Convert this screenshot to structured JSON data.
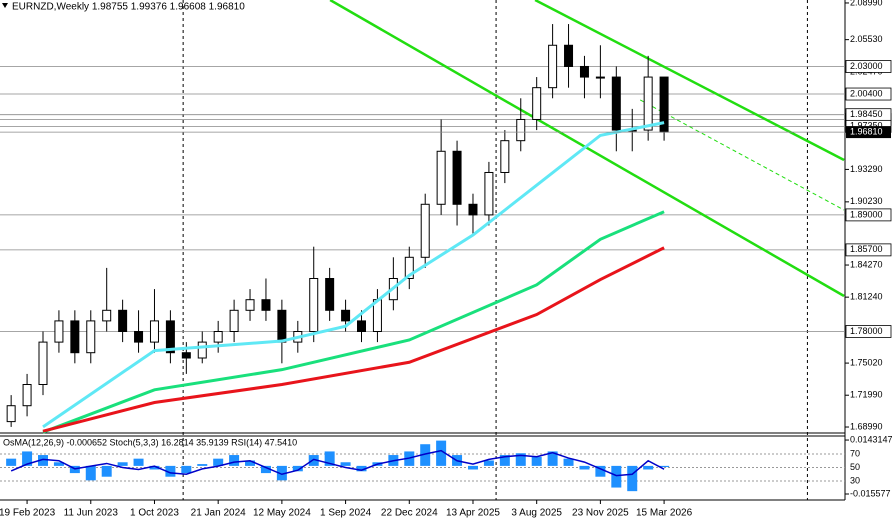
{
  "chart_data": [
    {
      "type": "candlestick",
      "title": "EURNZD,Weekly  1.98755 1.99376 1.96608 1.96810",
      "x": [
        -1,
        0,
        1,
        2,
        3,
        4,
        5,
        6,
        7,
        8,
        9,
        10,
        11,
        12,
        13,
        14,
        15,
        16,
        17,
        18,
        19,
        20,
        21,
        22,
        23,
        24,
        25,
        26,
        27,
        28,
        29,
        30,
        31,
        32,
        33,
        34,
        35,
        36,
        37,
        38,
        39,
        40
      ],
      "open": [
        1.695,
        1.71,
        1.73,
        1.77,
        1.79,
        1.76,
        1.79,
        1.8,
        1.78,
        1.77,
        1.79,
        1.76,
        1.755,
        1.77,
        1.78,
        1.8,
        1.81,
        1.8,
        1.77,
        1.78,
        1.83,
        1.8,
        1.79,
        1.78,
        1.81,
        1.83,
        1.85,
        1.9,
        1.95,
        1.9,
        1.89,
        1.93,
        1.96,
        1.98,
        2.01,
        2.05,
        2.03,
        2.02,
        2.02,
        1.97,
        1.97,
        2.02
      ],
      "high": [
        1.72,
        1.74,
        1.78,
        1.8,
        1.8,
        1.8,
        1.84,
        1.81,
        1.8,
        1.82,
        1.8,
        1.77,
        1.78,
        1.79,
        1.81,
        1.82,
        1.83,
        1.81,
        1.79,
        1.86,
        1.84,
        1.81,
        1.8,
        1.82,
        1.85,
        1.86,
        1.91,
        1.98,
        1.96,
        1.91,
        1.94,
        1.97,
        2.0,
        2.02,
        2.07,
        2.07,
        2.04,
        2.05,
        2.03,
        1.99,
        2.04,
        2.02
      ],
      "low": [
        1.69,
        1.7,
        1.72,
        1.76,
        1.75,
        1.75,
        1.78,
        1.77,
        1.76,
        1.76,
        1.75,
        1.74,
        1.75,
        1.76,
        1.77,
        1.79,
        1.79,
        1.75,
        1.76,
        1.77,
        1.79,
        1.78,
        1.77,
        1.77,
        1.8,
        1.82,
        1.84,
        1.89,
        1.88,
        1.87,
        1.88,
        1.92,
        1.95,
        1.97,
        2.0,
        2.01,
        2.0,
        2.0,
        1.95,
        1.95,
        1.96,
        1.96
      ],
      "close": [
        1.71,
        1.73,
        1.77,
        1.79,
        1.76,
        1.79,
        1.8,
        1.78,
        1.77,
        1.79,
        1.76,
        1.755,
        1.77,
        1.78,
        1.8,
        1.81,
        1.8,
        1.77,
        1.78,
        1.83,
        1.8,
        1.79,
        1.78,
        1.81,
        1.83,
        1.85,
        1.9,
        1.95,
        1.9,
        1.89,
        1.93,
        1.96,
        1.98,
        2.01,
        2.05,
        2.03,
        2.02,
        2.02,
        1.97,
        1.97,
        2.02,
        1.9681
      ],
      "color": "#000000",
      "series": [
        {
          "color": "#5fe8f5",
          "x": [
            1,
            8,
            16,
            20,
            24,
            28,
            32,
            36,
            40
          ],
          "values": [
            1.69,
            1.762,
            1.771,
            1.785,
            1.833,
            1.871,
            1.918,
            1.965,
            1.977
          ]
        },
        {
          "color": "#19e07c",
          "x": [
            1,
            8,
            16,
            24,
            32,
            36,
            40
          ],
          "values": [
            1.685,
            1.725,
            1.744,
            1.772,
            1.824,
            1.867,
            1.893
          ]
        },
        {
          "color": "#e8141b",
          "x": [
            1,
            8,
            16,
            24,
            32,
            36,
            40
          ],
          "values": [
            1.686,
            1.713,
            1.73,
            1.751,
            1.796,
            1.829,
            1.859
          ]
        }
      ],
      "trend_lines": [
        {
          "color": "#22dd11",
          "x": [
            19.03,
            51.3
          ],
          "values": [
            2.0927,
            1.8135
          ]
        },
        {
          "color": "#22dd11",
          "x": [
            31.9,
            51.3
          ],
          "values": [
            2.0927,
            1.9418
          ]
        },
        {
          "color": "#22dd11",
          "dashed": true,
          "x": [
            38.5,
            51.3
          ],
          "values": [
            1.9984,
            1.8946
          ]
        }
      ],
      "levels": [
        {
          "value": 2.03,
          "label": "2.03000"
        },
        {
          "value": 2.004,
          "label": "2.00400"
        },
        {
          "value": 1.98,
          "label": "1.98000"
        },
        {
          "value": 1.9845,
          "label": "1.98450"
        },
        {
          "value": 1.9735,
          "label": "1.97350"
        },
        {
          "value": 1.89,
          "label": "1.89000"
        },
        {
          "value": 1.857,
          "label": "1.85700"
        },
        {
          "value": 1.78,
          "label": "1.78000"
        }
      ],
      "last_price": {
        "value": 1.9681,
        "label": "1.96810"
      },
      "vlines": [
        9.8,
        29.45,
        49.0
      ],
      "xlim": [
        -1.7,
        51.36
      ],
      "ylim": [
        1.6852,
        2.0927
      ],
      "xticks": [
        {
          "value": 0,
          "label": "19 Feb 2023"
        },
        {
          "value": 4,
          "label": "11 Jun 2023"
        },
        {
          "value": 8,
          "label": "1 Oct 2023"
        },
        {
          "value": 12,
          "label": "21 Jan 2024"
        },
        {
          "value": 16,
          "label": "12 May 2024"
        },
        {
          "value": 20,
          "label": "1 Sep 2024"
        },
        {
          "value": 24,
          "label": "22 Dec 2024"
        },
        {
          "value": 28,
          "label": "13 Apr 2025"
        },
        {
          "value": 32,
          "label": "3 Aug 2025"
        },
        {
          "value": 36,
          "label": "23 Nov 2025"
        },
        {
          "value": 40,
          "label": "15 Mar 2026"
        }
      ],
      "yticks": [
        {
          "value": 2.0899,
          "label": "2.08990"
        },
        {
          "value": 2.0553,
          "label": "2.05530"
        },
        {
          "value": 2.0247,
          "label": "2.02470"
        },
        {
          "value": 1.9329,
          "label": "1.93290"
        },
        {
          "value": 1.9023,
          "label": "1.90230"
        },
        {
          "value": 1.8427,
          "label": "1.84270"
        },
        {
          "value": 1.8124,
          "label": "1.81240"
        },
        {
          "value": 1.7502,
          "label": "1.75020"
        },
        {
          "value": 1.7199,
          "label": "1.71990"
        },
        {
          "value": 1.6899,
          "label": "1.68990"
        }
      ]
    },
    {
      "type": "indicator",
      "label": "OsMA(12,26,9) -0.000652 Stoch(5,3,3) 16.2814 35.9139 RSI(14) 47.5410",
      "x": [
        -1,
        0,
        1,
        2,
        3,
        4,
        5,
        6,
        7,
        8,
        9,
        10,
        11,
        12,
        13,
        14,
        15,
        16,
        17,
        18,
        19,
        20,
        21,
        22,
        23,
        24,
        25,
        26,
        27,
        28,
        29,
        30,
        31,
        32,
        33,
        34,
        35,
        36,
        37,
        38,
        39,
        40
      ],
      "values": [
        0.004,
        0.008,
        0.006,
        0.002,
        -0.004,
        -0.008,
        -0.006,
        0.002,
        0.004,
        -0.002,
        -0.006,
        -0.004,
        0.001,
        0.004,
        0.006,
        0.003,
        -0.004,
        -0.008,
        -0.003,
        0.006,
        0.008,
        0.002,
        -0.003,
        0.002,
        0.006,
        0.008,
        0.012,
        0.014,
        0.006,
        -0.002,
        0.003,
        0.006,
        0.007,
        0.005,
        0.008,
        0.004,
        -0.002,
        -0.006,
        -0.012,
        -0.014,
        -0.002,
        -0.000652
      ],
      "color": "#1e90ff",
      "series": [
        {
          "color": "#0000c8",
          "axis": "y2",
          "values": [
            45,
            55,
            62,
            60,
            48,
            52,
            56,
            50,
            47,
            52,
            42,
            40,
            48,
            52,
            58,
            60,
            50,
            40,
            46,
            62,
            56,
            50,
            46,
            55,
            60,
            64,
            70,
            75,
            60,
            55,
            62,
            66,
            68,
            66,
            72,
            64,
            58,
            48,
            38,
            40,
            60,
            47.541
          ]
        }
      ],
      "xlim": [
        -1.7,
        51.36
      ],
      "ylim": [
        -0.0189,
        0.016
      ],
      "yticks": [
        0.0143147,
        -0.015577
      ],
      "y2lim": [
        1.85,
        95.2
      ],
      "y2ticks": [
        70,
        50,
        30
      ]
    }
  ]
}
